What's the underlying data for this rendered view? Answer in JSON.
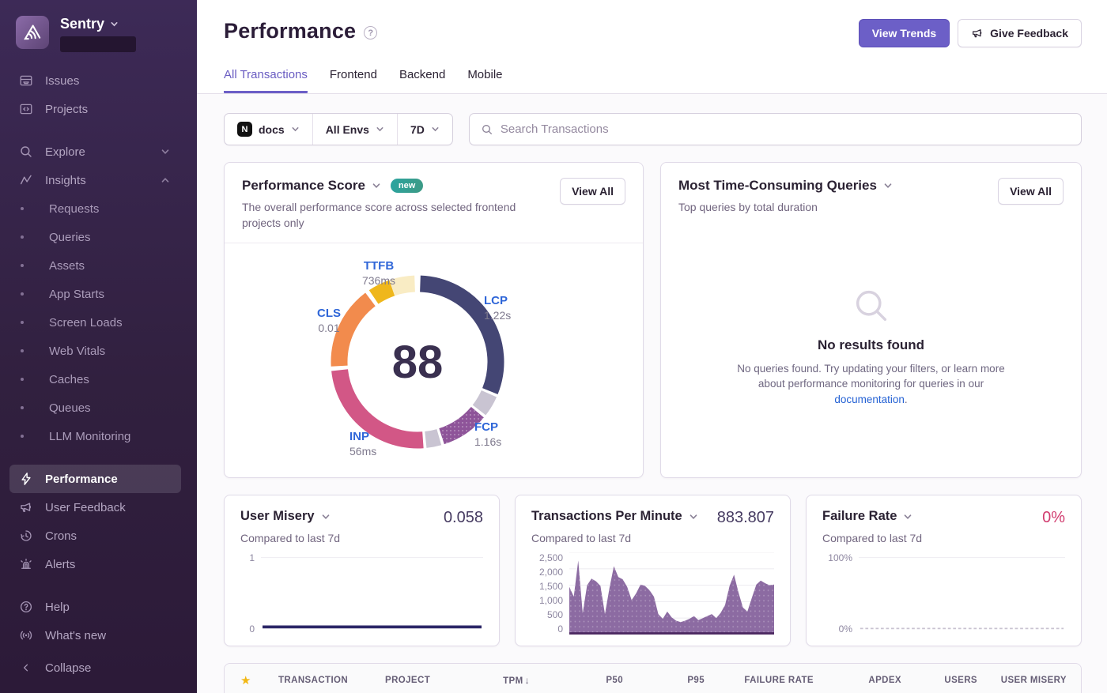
{
  "colors": {
    "accent": "#6c5fc7",
    "link_blue": "#2562d4",
    "vital_label_blue": "#2f66d8",
    "failure_pink": "#d13c6f",
    "badge_teal": "#31a095",
    "star_gold": "#f2b712"
  },
  "sidebar": {
    "brand": "Sentry",
    "nav_top": [
      {
        "label": "Issues",
        "icon": "issues-icon"
      },
      {
        "label": "Projects",
        "icon": "projects-icon"
      }
    ],
    "explore": {
      "label": "Explore",
      "chevron": "down"
    },
    "insights": {
      "label": "Insights",
      "chevron": "up"
    },
    "insights_children": [
      "Requests",
      "Queries",
      "Assets",
      "App Starts",
      "Screen Loads",
      "Web Vitals",
      "Caches",
      "Queues",
      "LLM Monitoring"
    ],
    "nav_mid": [
      {
        "label": "Performance",
        "icon": "lightning-icon",
        "active": true
      },
      {
        "label": "User Feedback",
        "icon": "megaphone-icon"
      },
      {
        "label": "Crons",
        "icon": "clock-icon"
      },
      {
        "label": "Alerts",
        "icon": "siren-icon"
      }
    ],
    "nav_bottom": [
      {
        "label": "Help",
        "icon": "help-icon"
      },
      {
        "label": "What's new",
        "icon": "broadcast-icon"
      }
    ],
    "collapse": "Collapse"
  },
  "header": {
    "title": "Performance",
    "view_trends": "View Trends",
    "give_feedback": "Give Feedback"
  },
  "tabs": [
    {
      "label": "All Transactions",
      "active": true
    },
    {
      "label": "Frontend",
      "active": false
    },
    {
      "label": "Backend",
      "active": false
    },
    {
      "label": "Mobile",
      "active": false
    }
  ],
  "filters": {
    "project": "docs",
    "project_icon": "nextjs-logo",
    "environment": "All Envs",
    "date_range": "7D",
    "search_placeholder": "Search Transactions"
  },
  "score_card": {
    "title": "Performance Score",
    "badge": "new",
    "description": "The overall performance score across selected frontend projects only",
    "view_all": "View All"
  },
  "queries_card": {
    "title": "Most Time-Consuming Queries",
    "subtitle": "Top queries by total duration",
    "view_all": "View All",
    "empty_title": "No results found",
    "empty_body_1": "No queries found. Try updating your filters, or learn more about performance monitoring for queries in our ",
    "empty_link": "documentation",
    "empty_body_2": "."
  },
  "stat_cards": {
    "user_misery": {
      "title": "User Misery",
      "subtitle": "Compared to last 7d",
      "value": "0.058",
      "y_top": "1",
      "y_bottom": "0"
    },
    "tpm": {
      "title": "Transactions Per Minute",
      "subtitle": "Compared to last 7d",
      "value": "883.807"
    },
    "failure_rate": {
      "title": "Failure Rate",
      "subtitle": "Compared to last 7d",
      "value": "0%",
      "y_top": "100%",
      "y_bottom": "0%"
    }
  },
  "table": {
    "star_icon": "★",
    "sort_icon": "↓",
    "columns": [
      "TRANSACTION",
      "PROJECT",
      "TPM",
      "P50",
      "P95",
      "FAILURE RATE",
      "APDEX",
      "USERS",
      "USER MISERY"
    ],
    "sort_column": "TPM",
    "sort_dir": "desc"
  },
  "chart_data": [
    {
      "id": "performance_score_ring",
      "type": "pie",
      "title": "Performance Score",
      "score": 88,
      "legend_position": "around-ring",
      "segments": [
        {
          "label": "LCP",
          "value": "1.22s",
          "color": "#444674",
          "start": 2,
          "end": 112
        },
        {
          "label": "",
          "value": "",
          "color": "#c9c4d2",
          "start": 114,
          "end": 128
        },
        {
          "label": "FCP",
          "value": "1.16s",
          "color": "#8e5499",
          "start": 130,
          "end": 162,
          "dotted": true
        },
        {
          "label": "",
          "value": "",
          "color": "#c9c4d2",
          "start": 164,
          "end": 174
        },
        {
          "label": "INP",
          "value": "56ms",
          "color": "#d25786",
          "start": 176,
          "end": 264
        },
        {
          "label": "CLS",
          "value": "0.01",
          "color": "#f28b4d",
          "start": 267,
          "end": 323
        },
        {
          "label": "TTFB",
          "value": "736ms",
          "color": "#efb71c",
          "start": 326,
          "end": 341
        },
        {
          "label": "",
          "value": "",
          "color": "#f9ecc4",
          "start": 341,
          "end": 358
        }
      ]
    },
    {
      "id": "user_misery_trend",
      "type": "line",
      "title": "User Misery",
      "current_value": 0.058,
      "ylim": [
        0,
        1
      ],
      "yticks": [
        "1",
        "0"
      ],
      "values": [
        0.058
      ],
      "line_color": "#2c2767",
      "grid": true
    },
    {
      "id": "tpm_trend",
      "type": "area",
      "title": "Transactions Per Minute",
      "current_value": 883.807,
      "ylim": [
        0,
        2500
      ],
      "yticks": [
        "2,500",
        "2,000",
        "1,500",
        "1,000",
        "500",
        "0"
      ],
      "values": [
        1450,
        1150,
        2250,
        650,
        1500,
        1700,
        1620,
        1480,
        620,
        1400,
        2080,
        1750,
        1680,
        1450,
        1050,
        1250,
        1520,
        1480,
        1350,
        1150,
        620,
        480,
        700,
        520,
        420,
        380,
        420,
        480,
        560,
        440,
        500,
        560,
        620,
        500,
        660,
        900,
        1480,
        1820,
        1280,
        820,
        700,
        1120,
        1520,
        1640,
        1560,
        1500,
        1520
      ],
      "fill_color": "#7c5695",
      "baseline_color": "#4d2a62",
      "grid": true
    },
    {
      "id": "failure_rate_trend",
      "type": "line",
      "title": "Failure Rate",
      "current_value": 0,
      "ylim": [
        0,
        100
      ],
      "yticks": [
        "100%",
        "0%"
      ],
      "values": [
        0
      ],
      "line_color": "#c9c3d1",
      "dashed": true,
      "grid": true
    }
  ]
}
